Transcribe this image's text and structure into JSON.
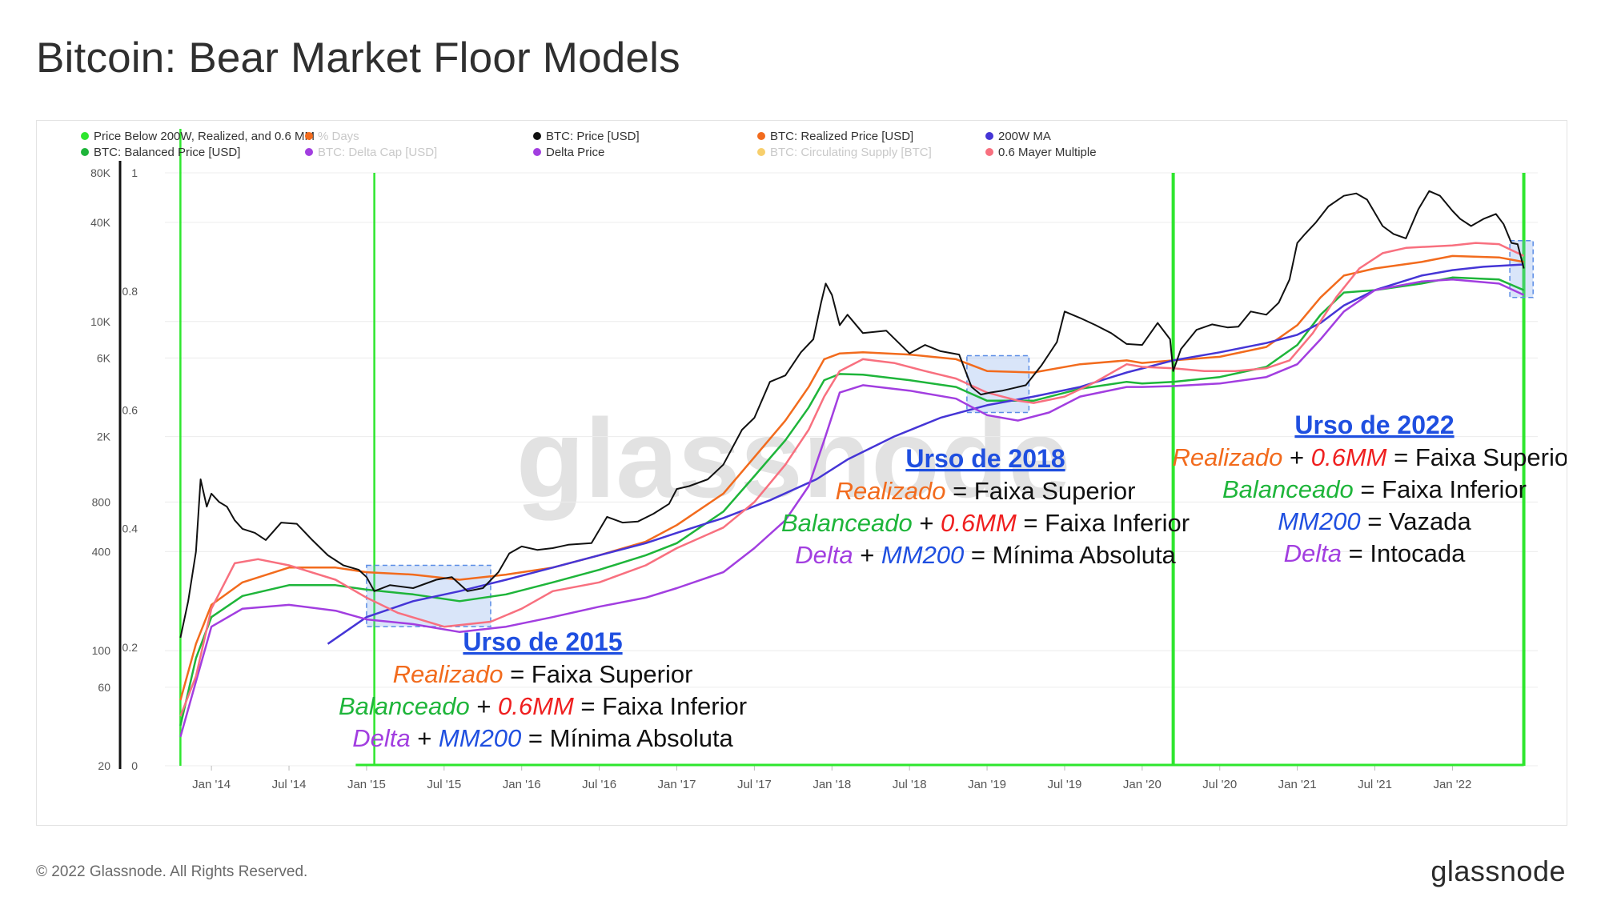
{
  "title": "Bitcoin: Bear Market Floor Models",
  "footer": {
    "copyright": "© 2022 Glassnode. All Rights Reserved.",
    "logo": "glassnode"
  },
  "watermark": "glassnode",
  "colors": {
    "price": "#111111",
    "realized": "#f26b1d",
    "balanced": "#1eb53a",
    "ma200w": "#4535d6",
    "delta": "#a23ee0",
    "mayer": "#f8707f",
    "signal": "#2ee62e",
    "pct_days": "#f59a5a",
    "delta_cap": "#c8a0ee",
    "circ_supply": "#f7cf6c",
    "text_blue": "#1f4fe0",
    "text_red": "#ef1f1f"
  },
  "legend": [
    {
      "label": "Price Below 200W, Realized, and 0.6 MM",
      "color": "#2ee62e",
      "muted": false
    },
    {
      "label": "% Days",
      "color": "#f26b1d",
      "muted": true
    },
    {
      "label": "BTC: Price [USD]",
      "color": "#111111",
      "muted": false
    },
    {
      "label": "BTC: Realized Price [USD]",
      "color": "#f26b1d",
      "muted": false
    },
    {
      "label": "200W MA",
      "color": "#4535d6",
      "muted": false
    },
    {
      "label": "BTC: Balanced Price [USD]",
      "color": "#1eb53a",
      "muted": false
    },
    {
      "label": "BTC: Delta Cap [USD]",
      "color": "#a23ee0",
      "muted": true
    },
    {
      "label": "Delta Price",
      "color": "#a23ee0",
      "muted": false
    },
    {
      "label": "BTC: Circulating Supply [BTC]",
      "color": "#f7cf6c",
      "muted": true
    },
    {
      "label": "0.6 Mayer Multiple",
      "color": "#f8707f",
      "muted": false
    }
  ],
  "annotations": [
    {
      "heading": "Urso de 2015",
      "lines": [
        [
          [
            "Realizado",
            "#f26b1d"
          ],
          [
            " = Faixa Superior",
            "#111111"
          ]
        ],
        [
          [
            "Balanceado",
            "#1eb53a"
          ],
          [
            " + ",
            "#111111"
          ],
          [
            "0.6MM",
            "#ef1f1f"
          ],
          [
            " = Faixa Inferior",
            "#111111"
          ]
        ],
        [
          [
            "Delta",
            "#a23ee0"
          ],
          [
            " + ",
            "#111111"
          ],
          [
            "MM200",
            "#1f4fe0"
          ],
          [
            " = Mínima Absoluta",
            "#111111"
          ]
        ]
      ]
    },
    {
      "heading": "Urso de 2018",
      "lines": [
        [
          [
            "Realizado",
            "#f26b1d"
          ],
          [
            " = Faixa Superior",
            "#111111"
          ]
        ],
        [
          [
            "Balanceado",
            "#1eb53a"
          ],
          [
            " + ",
            "#111111"
          ],
          [
            "0.6MM",
            "#ef1f1f"
          ],
          [
            " = Faixa Inferior",
            "#111111"
          ]
        ],
        [
          [
            "Delta",
            "#a23ee0"
          ],
          [
            " + ",
            "#111111"
          ],
          [
            "MM200",
            "#1f4fe0"
          ],
          [
            " = Mínima Absoluta",
            "#111111"
          ]
        ]
      ]
    },
    {
      "heading": "Urso de 2022",
      "lines": [
        [
          [
            "Realizado",
            "#f26b1d"
          ],
          [
            " + ",
            "#111111"
          ],
          [
            "0.6MM",
            "#ef1f1f"
          ],
          [
            " = Faixa Superior",
            "#111111"
          ]
        ],
        [
          [
            "Balanceado",
            "#1eb53a"
          ],
          [
            " = Faixa Inferior",
            "#111111"
          ]
        ],
        [
          [
            "MM200",
            "#1f4fe0"
          ],
          [
            " = Vazada",
            "#111111"
          ]
        ],
        [
          [
            "Delta",
            "#a23ee0"
          ],
          [
            " = Intocada",
            "#111111"
          ]
        ]
      ]
    }
  ],
  "chart_data": {
    "type": "line",
    "title": "Bitcoin: Bear Market Floor Models",
    "x_range": [
      "2013-10",
      "2022-06"
    ],
    "x_ticks": [
      "Jan '14",
      "Jul '14",
      "Jan '15",
      "Jul '15",
      "Jan '16",
      "Jul '16",
      "Jan '17",
      "Jul '17",
      "Jan '18",
      "Jul '18",
      "Jan '19",
      "Jul '19",
      "Jan '20",
      "Jul '20",
      "Jan '21",
      "Jul '21",
      "Jan '22"
    ],
    "y_left": {
      "scale": "log",
      "ylim": [
        20,
        80000
      ],
      "ticks": [
        20,
        60,
        100,
        400,
        800,
        2000,
        6000,
        10000,
        40000,
        80000
      ],
      "tick_labels": [
        "20",
        "60",
        "100",
        "400",
        "800",
        "2K",
        "6K",
        "10K",
        "40K",
        "80K"
      ]
    },
    "y_right": {
      "label": "% Days",
      "ylim": [
        0,
        1
      ],
      "ticks": [
        0,
        0.2,
        0.4,
        0.6,
        0.8,
        1
      ],
      "tick_labels": [
        "0",
        "0.2",
        "0.4",
        "0.6",
        "0.8",
        "1"
      ]
    },
    "series": [
      {
        "name": "BTC: Price [USD]",
        "color": "#111111",
        "width": 2,
        "x": [
          2013.8,
          2013.85,
          2013.9,
          2013.93,
          2013.97,
          2014.0,
          2014.05,
          2014.1,
          2014.15,
          2014.2,
          2014.28,
          2014.35,
          2014.45,
          2014.55,
          2014.65,
          2014.75,
          2014.85,
          2014.95,
          2015.0,
          2015.05,
          2015.15,
          2015.3,
          2015.45,
          2015.55,
          2015.65,
          2015.75,
          2015.85,
          2015.92,
          2016.0,
          2016.1,
          2016.2,
          2016.3,
          2016.45,
          2016.55,
          2016.65,
          2016.75,
          2016.85,
          2016.95,
          2017.0,
          2017.08,
          2017.2,
          2017.3,
          2017.42,
          2017.5,
          2017.6,
          2017.7,
          2017.8,
          2017.88,
          2017.93,
          2017.96,
          2018.0,
          2018.05,
          2018.1,
          2018.2,
          2018.35,
          2018.5,
          2018.6,
          2018.7,
          2018.82,
          2018.9,
          2018.96,
          2019.02,
          2019.1,
          2019.25,
          2019.35,
          2019.45,
          2019.5,
          2019.6,
          2019.7,
          2019.8,
          2019.9,
          2020.0,
          2020.1,
          2020.18,
          2020.2,
          2020.25,
          2020.35,
          2020.45,
          2020.55,
          2020.62,
          2020.7,
          2020.8,
          2020.88,
          2020.95,
          2021.0,
          2021.05,
          2021.12,
          2021.2,
          2021.3,
          2021.38,
          2021.45,
          2021.55,
          2021.62,
          2021.7,
          2021.78,
          2021.85,
          2021.92,
          2022.0,
          2022.05,
          2022.12,
          2022.2,
          2022.28,
          2022.33,
          2022.38,
          2022.42,
          2022.46
        ],
        "y": [
          120,
          200,
          400,
          1100,
          750,
          900,
          800,
          750,
          620,
          550,
          520,
          470,
          600,
          590,
          470,
          380,
          330,
          310,
          280,
          230,
          250,
          240,
          270,
          280,
          230,
          240,
          300,
          390,
          430,
          410,
          420,
          440,
          450,
          650,
          600,
          610,
          680,
          780,
          960,
          1000,
          1100,
          1350,
          2200,
          2600,
          4300,
          4700,
          6500,
          7800,
          13000,
          17000,
          14500,
          9500,
          11000,
          8500,
          8800,
          6400,
          7200,
          6600,
          6300,
          4000,
          3600,
          3700,
          3800,
          4100,
          5400,
          7500,
          11500,
          10500,
          9500,
          8500,
          7300,
          7200,
          9800,
          7800,
          5000,
          6800,
          8900,
          9600,
          9200,
          9300,
          11500,
          11000,
          13000,
          18000,
          30000,
          34000,
          40000,
          50000,
          58000,
          60000,
          55000,
          38000,
          34000,
          32000,
          48000,
          62000,
          58000,
          47000,
          42000,
          38000,
          42000,
          45000,
          39000,
          30000,
          29500,
          21000
        ]
      },
      {
        "name": "BTC: Realized Price [USD]",
        "color": "#f26b1d",
        "width": 2.5,
        "x": [
          2013.8,
          2013.9,
          2014.0,
          2014.2,
          2014.5,
          2014.8,
          2015.0,
          2015.3,
          2015.6,
          2015.9,
          2016.2,
          2016.5,
          2016.8,
          2017.0,
          2017.3,
          2017.5,
          2017.7,
          2017.85,
          2017.95,
          2018.05,
          2018.2,
          2018.5,
          2018.8,
          2019.0,
          2019.3,
          2019.6,
          2019.9,
          2020.0,
          2020.2,
          2020.5,
          2020.8,
          2021.0,
          2021.15,
          2021.3,
          2021.5,
          2021.8,
          2022.0,
          2022.3,
          2022.46
        ],
        "y": [
          50,
          110,
          190,
          260,
          320,
          320,
          300,
          290,
          270,
          290,
          320,
          380,
          460,
          580,
          900,
          1500,
          2500,
          4000,
          5900,
          6400,
          6500,
          6300,
          5900,
          5000,
          4900,
          5500,
          5800,
          5600,
          5800,
          6100,
          7000,
          9500,
          14000,
          19000,
          21000,
          23000,
          25000,
          24500,
          23000
        ]
      },
      {
        "name": "BTC: Balanced Price [USD]",
        "color": "#1eb53a",
        "width": 2.5,
        "x": [
          2013.8,
          2013.9,
          2014.0,
          2014.2,
          2014.5,
          2014.8,
          2015.0,
          2015.3,
          2015.6,
          2015.9,
          2016.2,
          2016.5,
          2016.8,
          2017.0,
          2017.3,
          2017.5,
          2017.7,
          2017.85,
          2017.95,
          2018.05,
          2018.2,
          2018.5,
          2018.8,
          2019.0,
          2019.3,
          2019.6,
          2019.9,
          2020.0,
          2020.2,
          2020.5,
          2020.8,
          2021.0,
          2021.15,
          2021.3,
          2021.5,
          2021.8,
          2022.0,
          2022.3,
          2022.46
        ],
        "y": [
          35,
          90,
          160,
          215,
          250,
          250,
          235,
          220,
          200,
          220,
          260,
          310,
          380,
          450,
          700,
          1150,
          1900,
          3000,
          4400,
          4800,
          4750,
          4400,
          4000,
          3300,
          3300,
          3900,
          4300,
          4200,
          4300,
          4600,
          5300,
          7200,
          11000,
          15000,
          15500,
          17000,
          18500,
          18000,
          15500
        ]
      },
      {
        "name": "200W MA",
        "color": "#4535d6",
        "width": 2.5,
        "x": [
          2014.75,
          2015.0,
          2015.3,
          2015.6,
          2015.9,
          2016.2,
          2016.5,
          2016.8,
          2017.0,
          2017.3,
          2017.6,
          2017.9,
          2018.1,
          2018.4,
          2018.7,
          2019.0,
          2019.3,
          2019.6,
          2019.9,
          2020.2,
          2020.5,
          2020.8,
          2021.0,
          2021.15,
          2021.3,
          2021.5,
          2021.8,
          2022.0,
          2022.2,
          2022.46
        ],
        "y": [
          110,
          160,
          200,
          230,
          270,
          320,
          380,
          450,
          520,
          640,
          820,
          1100,
          1450,
          2000,
          2600,
          3100,
          3500,
          4000,
          4900,
          5800,
          6500,
          7400,
          8300,
          9800,
          12500,
          15500,
          19000,
          20500,
          21500,
          22200
        ]
      },
      {
        "name": "Delta Price",
        "color": "#a23ee0",
        "width": 2.5,
        "x": [
          2013.8,
          2013.9,
          2014.0,
          2014.2,
          2014.5,
          2014.8,
          2015.0,
          2015.3,
          2015.6,
          2015.9,
          2016.2,
          2016.5,
          2016.8,
          2017.0,
          2017.3,
          2017.5,
          2017.7,
          2017.85,
          2017.95,
          2018.05,
          2018.2,
          2018.5,
          2018.8,
          2019.0,
          2019.2,
          2019.4,
          2019.6,
          2019.9,
          2020.0,
          2020.2,
          2020.5,
          2020.8,
          2021.0,
          2021.15,
          2021.3,
          2021.5,
          2021.8,
          2022.0,
          2022.3,
          2022.46
        ],
        "y": [
          30,
          65,
          140,
          180,
          190,
          175,
          155,
          145,
          130,
          140,
          160,
          185,
          210,
          240,
          300,
          420,
          620,
          1000,
          1900,
          3700,
          4100,
          3800,
          3400,
          2700,
          2500,
          2800,
          3500,
          4000,
          4000,
          4050,
          4200,
          4600,
          5500,
          7800,
          11500,
          15500,
          17500,
          18000,
          17000,
          14500
        ]
      },
      {
        "name": "0.6 Mayer Multiple",
        "color": "#f8707f",
        "width": 2.5,
        "x": [
          2013.8,
          2013.9,
          2014.0,
          2014.15,
          2014.3,
          2014.5,
          2014.8,
          2015.0,
          2015.2,
          2015.5,
          2015.8,
          2016.0,
          2016.2,
          2016.5,
          2016.8,
          2017.0,
          2017.3,
          2017.5,
          2017.7,
          2017.85,
          2017.95,
          2018.05,
          2018.2,
          2018.4,
          2018.6,
          2018.8,
          2019.0,
          2019.2,
          2019.3,
          2019.5,
          2019.7,
          2019.9,
          2020.0,
          2020.2,
          2020.4,
          2020.6,
          2020.8,
          2020.95,
          2021.1,
          2021.25,
          2021.4,
          2021.55,
          2021.7,
          2021.85,
          2022.0,
          2022.15,
          2022.3,
          2022.46
        ],
        "y": [
          40,
          70,
          180,
          340,
          360,
          330,
          270,
          210,
          170,
          140,
          150,
          180,
          230,
          260,
          330,
          420,
          560,
          800,
          1350,
          2200,
          3500,
          5000,
          5900,
          5600,
          5000,
          4500,
          3700,
          3300,
          3200,
          3500,
          4300,
          5500,
          5300,
          5200,
          5000,
          5000,
          5200,
          5800,
          8500,
          14000,
          21000,
          26000,
          28000,
          28500,
          29000,
          30000,
          29500,
          25000
        ]
      }
    ],
    "signal_bars": {
      "name": "Price Below 200W, Realized, and 0.6 MM",
      "color": "#2ee62e",
      "x": [
        2013.8,
        2015.05,
        2020.2,
        2022.46
      ],
      "values": [
        1,
        1,
        1,
        1
      ]
    },
    "bear_markets": [
      {
        "label": "Urso de 2015",
        "x_start": 2015.0,
        "x_end": 2015.8,
        "y_low": 140,
        "y_high": 330
      },
      {
        "label": "Urso de 2018",
        "x_start": 2018.87,
        "x_end": 2019.27,
        "y_low": 2800,
        "y_high": 6200
      },
      {
        "label": "Urso de 2022",
        "x_start": 2022.37,
        "x_end": 2022.52,
        "y_low": 14000,
        "y_high": 31000
      }
    ]
  }
}
